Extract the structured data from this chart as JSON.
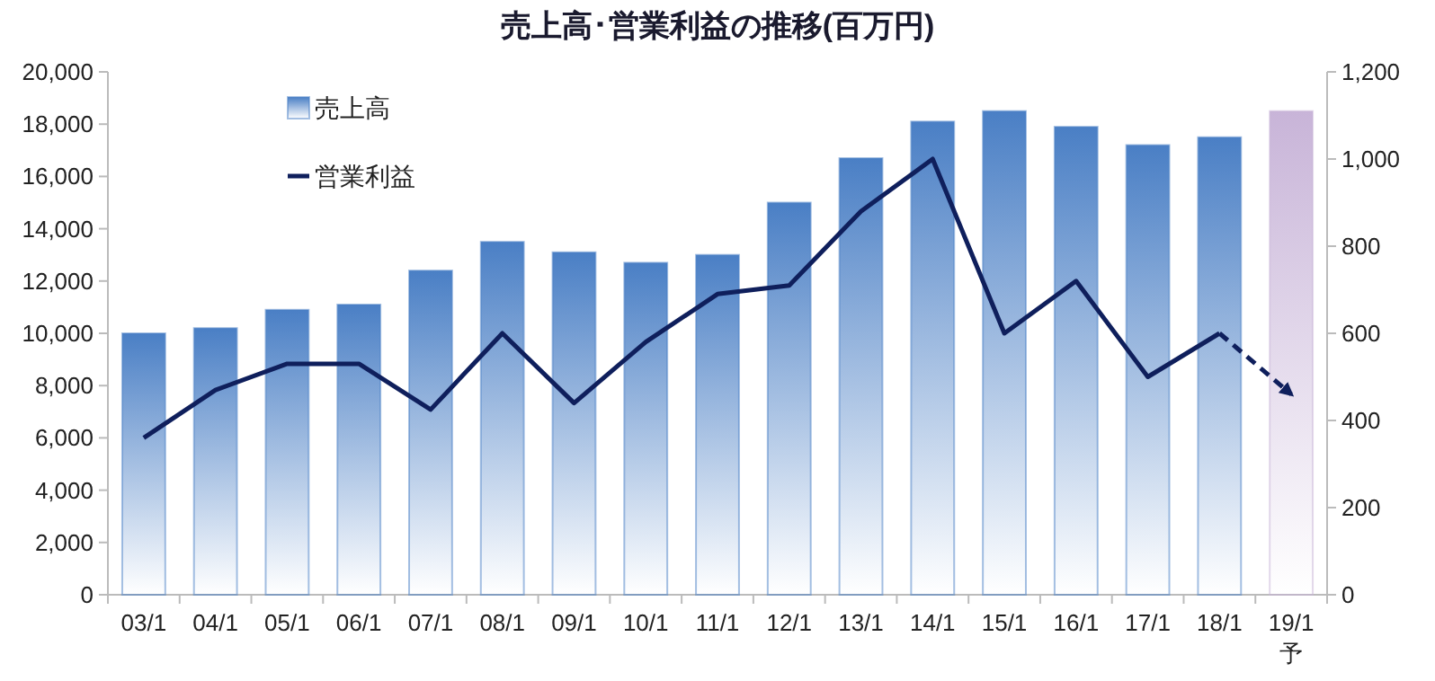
{
  "chart_data": {
    "type": "bar",
    "title": "売上高･営業利益の推移(百万円)",
    "categories": [
      "03/1",
      "04/1",
      "05/1",
      "06/1",
      "07/1",
      "08/1",
      "09/1",
      "10/1",
      "11/1",
      "12/1",
      "13/1",
      "14/1",
      "15/1",
      "16/1",
      "17/1",
      "18/1",
      "19/1\n予"
    ],
    "series": [
      {
        "name": "売上高",
        "color": "#4a7fc5",
        "colors": [
          "#4a7fc5",
          "#4a7fc5",
          "#4a7fc5",
          "#4a7fc5",
          "#4a7fc5",
          "#4a7fc5",
          "#4a7fc5",
          "#4a7fc5",
          "#4a7fc5",
          "#4a7fc5",
          "#4a7fc5",
          "#4a7fc5",
          "#4a7fc5",
          "#4a7fc5",
          "#4a7fc5",
          "#4a7fc5",
          "#c8b4d8"
        ],
        "values": [
          10000,
          10200,
          10900,
          11100,
          12400,
          13500,
          13100,
          12700,
          13000,
          15000,
          16700,
          18100,
          18500,
          17900,
          17200,
          17500,
          18500
        ]
      },
      {
        "name": "営業利益",
        "type": "line",
        "axis": "y2",
        "color": "#0f1f5c",
        "line_style": "solid",
        "values": [
          360,
          470,
          530,
          530,
          425,
          600,
          440,
          580,
          690,
          710,
          880,
          1000,
          600,
          720,
          500,
          600,
          null
        ]
      },
      {
        "type": "line",
        "axis": "y2",
        "color": "#0f1f5c",
        "line_style": "dashed",
        "values": [
          null,
          null,
          null,
          null,
          null,
          null,
          null,
          null,
          null,
          null,
          null,
          null,
          null,
          null,
          null,
          600,
          460
        ]
      }
    ],
    "ylim": [
      0,
      20000
    ],
    "yticks": [
      {
        "value": 0,
        "label": "0"
      },
      {
        "value": 2000,
        "label": "2,000"
      },
      {
        "value": 4000,
        "label": "4,000"
      },
      {
        "value": 6000,
        "label": "6,000"
      },
      {
        "value": 8000,
        "label": "8,000"
      },
      {
        "value": 10000,
        "label": "10,000"
      },
      {
        "value": 12000,
        "label": "12,000"
      },
      {
        "value": 14000,
        "label": "14,000"
      },
      {
        "value": 16000,
        "label": "16,000"
      },
      {
        "value": 18000,
        "label": "18,000"
      },
      {
        "value": 20000,
        "label": "20,000"
      }
    ],
    "y2lim": [
      0,
      1200
    ],
    "y2ticks": [
      0,
      200,
      400,
      600,
      800,
      {
        "value": 1000,
        "label": "1,000"
      },
      {
        "value": 1200,
        "label": "1,200"
      }
    ],
    "legend": "top left"
  }
}
